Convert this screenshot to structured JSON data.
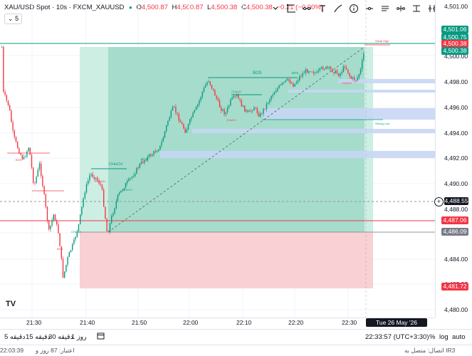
{
  "legend": {
    "symbol": "XAU/USD Spot · 10s · FXCM_XAUUSD",
    "open_label": "O",
    "open": "4,500.87",
    "high_label": "H",
    "high": "4,500.87",
    "low_label": "L",
    "low": "4,500.38",
    "close_label": "C",
    "close": "4,500.38",
    "change": "−0.21 (−0.00%)"
  },
  "interval_selector": {
    "value": "5"
  },
  "toolbar": {
    "icons": [
      "chevron-down-icon",
      "rectangle-icon",
      "hline-icon",
      "text-icon",
      "brush-icon",
      "info-icon",
      "minus-icon",
      "note-icon",
      "ruler-icon",
      "range-icon",
      "vline-icon"
    ]
  },
  "price_axis": {
    "labels": [
      "4,501.00",
      "4,500.00",
      "4,498.00",
      "4,496.00",
      "4,494.00",
      "4,492.00",
      "4,490.00",
      "4,488.00",
      "4,486.00",
      "4,484.00",
      "4,482.00",
      "4,480.00"
    ],
    "tags": {
      "target": "4,501.06",
      "high": "4,500.75",
      "last": "4,500.38",
      "close2": "4,500.38",
      "crosshair": "4,488.55",
      "stop": "4,487.06",
      "entry": "4,486.09",
      "stop_low": "4,481.72"
    }
  },
  "time_axis": {
    "labels": [
      "21:30",
      "21:40",
      "21:50",
      "22:00",
      "22:10",
      "22:20",
      "22:30"
    ],
    "crosshair": "Tue 26 May '26   22:39:50"
  },
  "annotations": {
    "bos": "BOS",
    "choch": "CHoCH",
    "weak_high": "Weak High",
    "strong_low": "Strong Low"
  },
  "bottom_bar": {
    "timeframes": [
      "5 دقیقه",
      "15 دقیقه",
      "30 دقیقه",
      "1 روز"
    ],
    "clock": "22:33:57 (UTC+3:30)",
    "percent": "%",
    "log": "log",
    "auto": "auto"
  },
  "status_bar": {
    "clock": "22:03:39",
    "credit": "اعتبار: 87 روز و",
    "connection": "اتصال: متصل به IR3"
  },
  "colors": {
    "up": "#089981",
    "down": "#f23645",
    "target_zone": "#8ed8c2",
    "stop_zone": "#f8c9cc",
    "fvg": "#c9d6f5"
  },
  "logo": "TV"
}
